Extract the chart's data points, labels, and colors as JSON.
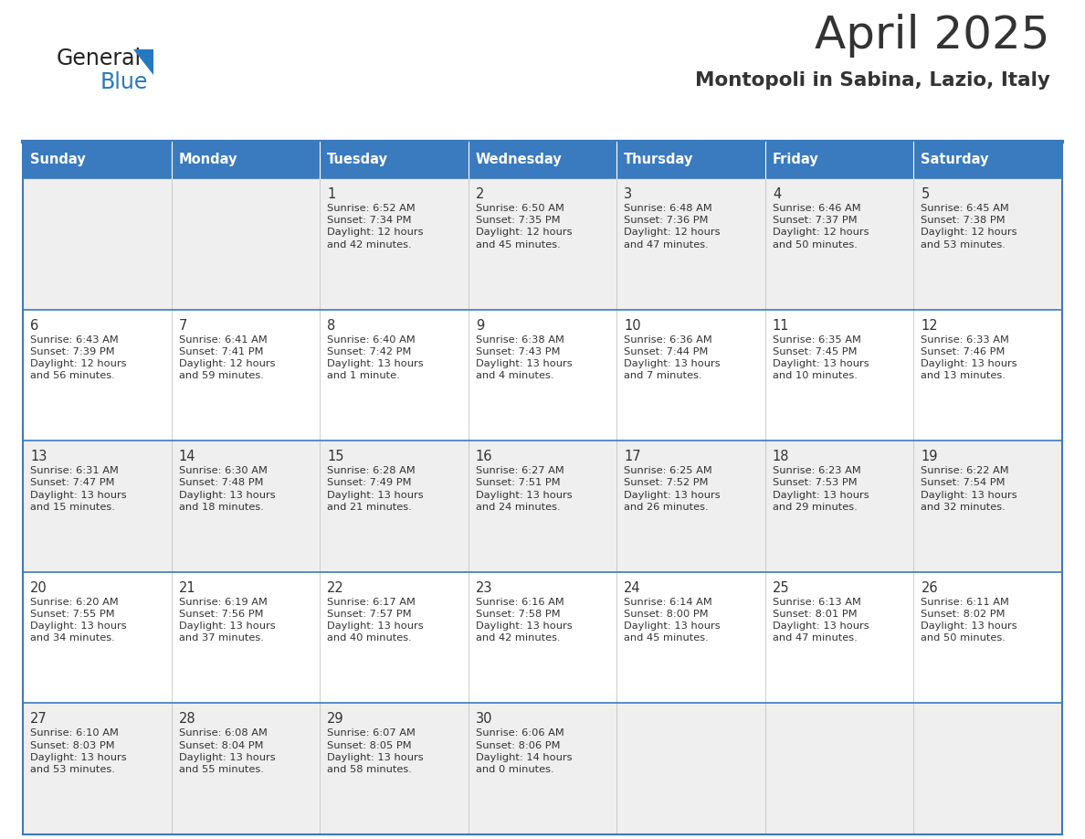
{
  "title": "April 2025",
  "subtitle": "Montopoli in Sabina, Lazio, Italy",
  "header_bg": "#3a7abf",
  "header_text": "#ffffff",
  "row_bg_odd": "#efefef",
  "row_bg_even": "#ffffff",
  "cell_text": "#333333",
  "days_of_week": [
    "Sunday",
    "Monday",
    "Tuesday",
    "Wednesday",
    "Thursday",
    "Friday",
    "Saturday"
  ],
  "cal_data": [
    [
      "",
      "",
      "1\nSunrise: 6:52 AM\nSunset: 7:34 PM\nDaylight: 12 hours\nand 42 minutes.",
      "2\nSunrise: 6:50 AM\nSunset: 7:35 PM\nDaylight: 12 hours\nand 45 minutes.",
      "3\nSunrise: 6:48 AM\nSunset: 7:36 PM\nDaylight: 12 hours\nand 47 minutes.",
      "4\nSunrise: 6:46 AM\nSunset: 7:37 PM\nDaylight: 12 hours\nand 50 minutes.",
      "5\nSunrise: 6:45 AM\nSunset: 7:38 PM\nDaylight: 12 hours\nand 53 minutes."
    ],
    [
      "6\nSunrise: 6:43 AM\nSunset: 7:39 PM\nDaylight: 12 hours\nand 56 minutes.",
      "7\nSunrise: 6:41 AM\nSunset: 7:41 PM\nDaylight: 12 hours\nand 59 minutes.",
      "8\nSunrise: 6:40 AM\nSunset: 7:42 PM\nDaylight: 13 hours\nand 1 minute.",
      "9\nSunrise: 6:38 AM\nSunset: 7:43 PM\nDaylight: 13 hours\nand 4 minutes.",
      "10\nSunrise: 6:36 AM\nSunset: 7:44 PM\nDaylight: 13 hours\nand 7 minutes.",
      "11\nSunrise: 6:35 AM\nSunset: 7:45 PM\nDaylight: 13 hours\nand 10 minutes.",
      "12\nSunrise: 6:33 AM\nSunset: 7:46 PM\nDaylight: 13 hours\nand 13 minutes."
    ],
    [
      "13\nSunrise: 6:31 AM\nSunset: 7:47 PM\nDaylight: 13 hours\nand 15 minutes.",
      "14\nSunrise: 6:30 AM\nSunset: 7:48 PM\nDaylight: 13 hours\nand 18 minutes.",
      "15\nSunrise: 6:28 AM\nSunset: 7:49 PM\nDaylight: 13 hours\nand 21 minutes.",
      "16\nSunrise: 6:27 AM\nSunset: 7:51 PM\nDaylight: 13 hours\nand 24 minutes.",
      "17\nSunrise: 6:25 AM\nSunset: 7:52 PM\nDaylight: 13 hours\nand 26 minutes.",
      "18\nSunrise: 6:23 AM\nSunset: 7:53 PM\nDaylight: 13 hours\nand 29 minutes.",
      "19\nSunrise: 6:22 AM\nSunset: 7:54 PM\nDaylight: 13 hours\nand 32 minutes."
    ],
    [
      "20\nSunrise: 6:20 AM\nSunset: 7:55 PM\nDaylight: 13 hours\nand 34 minutes.",
      "21\nSunrise: 6:19 AM\nSunset: 7:56 PM\nDaylight: 13 hours\nand 37 minutes.",
      "22\nSunrise: 6:17 AM\nSunset: 7:57 PM\nDaylight: 13 hours\nand 40 minutes.",
      "23\nSunrise: 6:16 AM\nSunset: 7:58 PM\nDaylight: 13 hours\nand 42 minutes.",
      "24\nSunrise: 6:14 AM\nSunset: 8:00 PM\nDaylight: 13 hours\nand 45 minutes.",
      "25\nSunrise: 6:13 AM\nSunset: 8:01 PM\nDaylight: 13 hours\nand 47 minutes.",
      "26\nSunrise: 6:11 AM\nSunset: 8:02 PM\nDaylight: 13 hours\nand 50 minutes."
    ],
    [
      "27\nSunrise: 6:10 AM\nSunset: 8:03 PM\nDaylight: 13 hours\nand 53 minutes.",
      "28\nSunrise: 6:08 AM\nSunset: 8:04 PM\nDaylight: 13 hours\nand 55 minutes.",
      "29\nSunrise: 6:07 AM\nSunset: 8:05 PM\nDaylight: 13 hours\nand 58 minutes.",
      "30\nSunrise: 6:06 AM\nSunset: 8:06 PM\nDaylight: 14 hours\nand 0 minutes.",
      "",
      "",
      ""
    ]
  ],
  "logo_color_general": "#222222",
  "logo_color_blue": "#2679c0",
  "logo_triangle_color": "#2679c0",
  "separator_color": "#3a7abf",
  "fig_bg": "#ffffff",
  "title_color": "#333333",
  "subtitle_color": "#333333"
}
